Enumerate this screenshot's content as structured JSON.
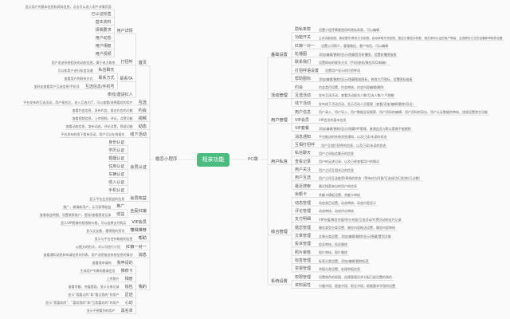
{
  "center": {
    "label": "相亲功能",
    "color": "#4cbb7f"
  },
  "line_color": "#cfcfcf",
  "left": {
    "label": "婚恋小程序",
    "items": [
      {
        "label": "首页",
        "children": [
          {
            "label": "用户详情",
            "children": [
              {
                "label": "",
                "desc": "显示用户的基本信息和资料信息，点击可以进入用户详情页面"
              },
              {
                "label": "已认证标签"
              },
              {
                "label": "基本资料"
              },
              {
                "label": "择偶要求"
              },
              {
                "label": "用户动态"
              },
              {
                "label": "用户相册"
              },
              {
                "label": "用户视频"
              }
            ]
          },
          {
            "label": "打招呼",
            "desc": "用户发送系统相关的动态信息，属于老大联系"
          },
          {
            "label": "联系TA",
            "children": [
              {
                "label": "私信聊天",
                "desc": "可以和用户进行私信沟通"
              },
              {
                "label": "联系方式",
                "desc": "查看用户的联系方式"
              },
              {
                "label": "互选信息/手机号",
                "desc": "加好友查看用户互选信息/手机号"
              }
            ]
          },
          {
            "label": "牵线/邀请红人"
          }
        ]
      },
      {
        "label": "互选",
        "desc": "平台发布的互选活动，用户报名后，进入互选大厅，可以查看/选择喜欢的用户"
      },
      {
        "label": "约会",
        "desc": "查看约会信息，发布约会，报名约会的功能"
      },
      {
        "label": "视频",
        "desc": "查看视频信息，上传视频，评论，点赞功能"
      },
      {
        "label": "动态",
        "desc": "查看动态信息，发布动态，评论点赞，筛选功能"
      },
      {
        "label": "线下活动",
        "desc": "平台发布的线下相亲活动，用户可以在线报名"
      },
      {
        "label": "会员认证",
        "children": [
          {
            "label": "身份认证"
          },
          {
            "label": "学历认证"
          },
          {
            "label": "婚姻认证"
          },
          {
            "label": "住房认证"
          },
          {
            "label": "车辆认证"
          },
          {
            "label": "收入认证"
          },
          {
            "label": "手机认证"
          }
        ]
      },
      {
        "label": "会员权益",
        "desc": "显示平台会员权益的信息"
      },
      {
        "label": "全民红娘",
        "children": [
          {
            "label": "推广",
            "desc": "推广，邀请新用户，认可获得收益"
          },
          {
            "label": "收益",
            "desc": "查看收益明细，设置收款账户，提现/查看提现记录"
          }
        ]
      },
      {
        "label": "VIP会员",
        "desc": "显示VIP套餐的权限和价格，可以选择支付购买"
      },
      {
        "label": "懂得推荐",
        "desc": "显示交友数，懂得我的资讯"
      },
      {
        "label": "帮助",
        "desc": "显示与平台合作联络的信息"
      },
      {
        "label": "红娘一对一",
        "desc": "以图文的形式，对公司进行介绍"
      },
      {
        "label": "消息",
        "desc": "查看通知消息和申请信息的列表，用户消息推送系统信息的情况"
      },
      {
        "label": "我的",
        "children": [
          {
            "label": "我申请的",
            "desc": "查看我申请的"
          },
          {
            "label": "推荐卡",
            "desc": "生成用户专属的邀请会员"
          },
          {
            "label": "相册",
            "desc": "上传照片"
          },
          {
            "label": "钱包",
            "desc": "查看余额、充值提现，显示交易记录"
          },
          {
            "label": "足迹",
            "desc": "显示“我看过的”和“看过我的”的用户"
          },
          {
            "label": "心动",
            "desc": "显示“我喜欢的”、“喜欢我的”和“互相喜欢的”的用户"
          },
          {
            "label": "黑名单",
            "desc": "显示不想看到的用户"
          }
        ]
      }
    ]
  },
  "right": {
    "label": "PC端",
    "groups": [
      {
        "label": "基础设置",
        "items": [
          {
            "label": "隐私条款",
            "desc": "设置小程序需要使用的隐私条款，可以编辑"
          },
          {
            "label": "功能开关",
            "desc": "主页功能权限、被权限开/联系方式权限、自动审核开关权限、是否头像显示权限、相关身份认证的用户等级、互选联系方式的设置和审核的设置"
          },
          {
            "label": "红娘一对一",
            "desc": "设置公司简介，客服微信，客户电话，可以编辑"
          },
          {
            "label": "轮播图",
            "desc": "添加/编辑/删除/显示/隐藏首页轮播图，设置轮播图链接"
          },
          {
            "label": "联系我们",
            "desc": "设置网站的联系方式（手机/座机/微信/QQ/邮箱）"
          },
          {
            "label": "打招呼语设置",
            "desc": "设置用户显示的打招呼语"
          },
          {
            "label": "帮助图标",
            "desc": "添加/编辑/删除/显示/隐藏帮助图标，修改大厅图标，设置图标链接"
          }
        ]
      },
      {
        "label": "活动管理",
        "items": [
          {
            "label": "约会",
            "desc": "约会类目设置，约会审核，约会内容编辑/删除"
          },
          {
            "label": "互选活动",
            "desc": "发布互选活动，查看活动报名人数/互选人数/人气指数"
          },
          {
            "label": "线下活动",
            "desc": "发布线下活动活动，显示活动人员管理（查看/添加/编辑/删除/导出）"
          }
        ]
      },
      {
        "label": "用户管理",
        "items": [
          {
            "label": "用户信息",
            "desc": "用户录入、用户导入、用户数据全局搜索、用户资料的编辑、用户资料的导出、用户认证数据的审核、违规设置禁言功能"
          },
          {
            "label": "VIP会员",
            "desc": "VIP会员的基本信息"
          },
          {
            "label": "VIP套餐",
            "desc": "添加/编辑/删除/显示/隐藏VIP套餐，普通会员与默认套餐不能删除"
          }
        ]
      },
      {
        "label": "用户私信",
        "items": [
          {
            "label": "消息通知",
            "desc": "平台推送的系统消息通知，以及已读/未读的状态"
          },
          {
            "label": "互相打招呼",
            "desc": "用户互相打招呼的信息，以及已读/未读的状态"
          },
          {
            "label": "私信聊天",
            "desc": "用户之间私信聊天的信息"
          },
          {
            "label": "查看记录",
            "desc": "用户的足迹记录，以及已经查看用户的情况"
          },
          {
            "label": "用户关注",
            "desc": "用户之间互相关注的信息"
          },
          {
            "label": "用户互选",
            "desc": "用户之间互选推荐/牵线的状态（等待对方同意/互选成功/已拒绝/已过期）"
          },
          {
            "label": "最近搜索",
            "desc": "最近搜索来自的用户的信息"
          }
        ]
      },
      {
        "label": "综合管理",
        "items": [
          {
            "label": "余额卡",
            "desc": "余额卡模板设置，余额卡审核"
          },
          {
            "label": "动态管理",
            "desc": "动态类目设置，动态审核，动态内容显示"
          },
          {
            "label": "评论管理",
            "desc": "动态审核，动态评论审核"
          },
          {
            "label": "支付明细",
            "desc": "VIP充值/微信充值/积分充值/互选活动/付费活动的支付记录"
          },
          {
            "label": "婚恋管理",
            "desc": "婚恋类型分类设置，婚恋内容推送设置，婚恋内容审核"
          },
          {
            "label": "文章管理",
            "desc": "文章分类设置，添加/编辑/删除/显示/隐藏/置顶文章"
          },
          {
            "label": "投诉管理",
            "desc": "投诉审核，投诉删除"
          },
          {
            "label": "照片审核",
            "desc": "照片审核，照片删除"
          },
          {
            "label": "标签管理",
            "desc": "标签分类设置，添加/编辑/删除标签"
          },
          {
            "label": "举报管理",
            "desc": "举报分类设置，处理举报信息"
          }
        ]
      },
      {
        "label": "系统设置",
        "items": [
          {
            "label": "权限管理",
            "desc": "设置角色的权限，创建管理员并分配已经设置的角色"
          },
          {
            "label": "资料属性",
            "desc": "兴趣字段、星座字段、职业字段，根据要求字段的设置"
          }
        ]
      }
    ]
  }
}
